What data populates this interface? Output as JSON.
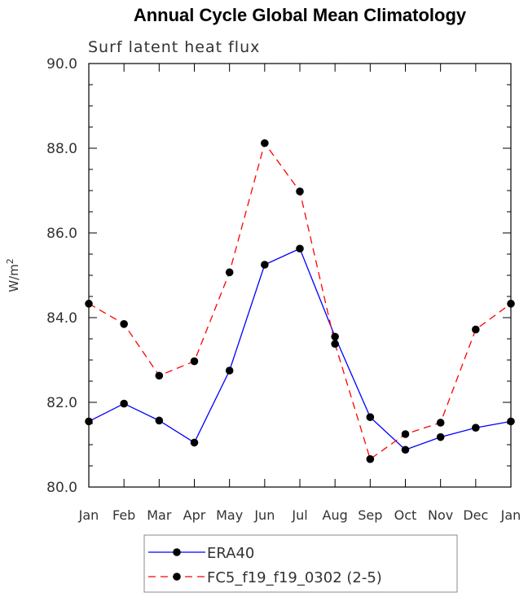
{
  "chart_data": {
    "type": "line",
    "title": "Annual Cycle Global Mean Climatology",
    "subtitle": "Surf latent heat flux",
    "ylabel": "W/m",
    "ylabel_sup": "2",
    "xlabel": "",
    "categories": [
      "Jan",
      "Feb",
      "Mar",
      "Apr",
      "May",
      "Jun",
      "Jul",
      "Aug",
      "Sep",
      "Oct",
      "Nov",
      "Dec",
      "Jan"
    ],
    "ylim": [
      80.0,
      90.0
    ],
    "yticks": [
      80.0,
      82.0,
      84.0,
      86.0,
      88.0,
      90.0
    ],
    "ytick_labels": [
      "80.0",
      "82.0",
      "84.0",
      "86.0",
      "88.0",
      "90.0"
    ],
    "grid": false,
    "legend_position": "bottom",
    "series": [
      {
        "name": "ERA40",
        "color": "#0000ff",
        "line_style": "solid",
        "marker": "filled-circle",
        "values": [
          81.55,
          81.97,
          81.57,
          81.05,
          82.75,
          85.25,
          85.63,
          83.55,
          81.65,
          80.88,
          81.18,
          81.4,
          81.55
        ]
      },
      {
        "name": "FC5_f19_f19_0302 (2-5)",
        "color": "#ff0000",
        "line_style": "dashed",
        "marker": "filled-circle",
        "values": [
          84.33,
          83.85,
          82.63,
          82.97,
          85.07,
          88.12,
          86.98,
          83.38,
          80.66,
          81.25,
          81.52,
          83.72,
          84.33
        ]
      }
    ]
  }
}
